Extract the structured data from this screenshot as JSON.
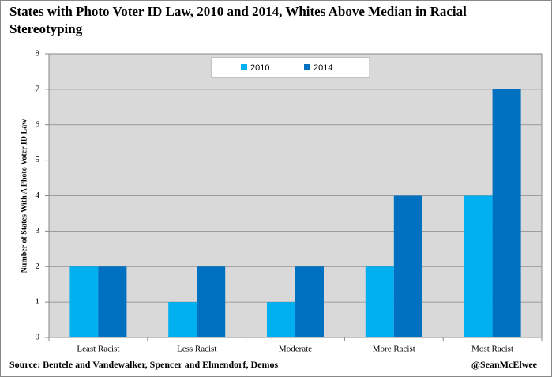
{
  "chart_data": {
    "type": "bar",
    "title": "States with Photo Voter ID Law, 2010 and 2014, Whites Above Median in Racial Stereotyping",
    "y_label": "Number of States With A Photo Voter ID Law",
    "source": "Source: Bentele and Vandewalker, Spencer and Elmendorf, Demos",
    "credit": "@SeanMcElwee",
    "categories": [
      "Least Racist",
      "Less Racist",
      "Moderate",
      "More Racist",
      "Most Racist"
    ],
    "series": [
      {
        "name": "2010",
        "color": "#00b0f0",
        "values": [
          2,
          1,
          1,
          2,
          4
        ]
      },
      {
        "name": "2014",
        "color": "#0070c0",
        "values": [
          2,
          2,
          2,
          4,
          7
        ]
      }
    ],
    "ylim": [
      0,
      8
    ],
    "yticks": [
      0,
      1,
      2,
      3,
      4,
      5,
      6,
      7,
      8
    ],
    "grid": true,
    "legend": "top"
  }
}
